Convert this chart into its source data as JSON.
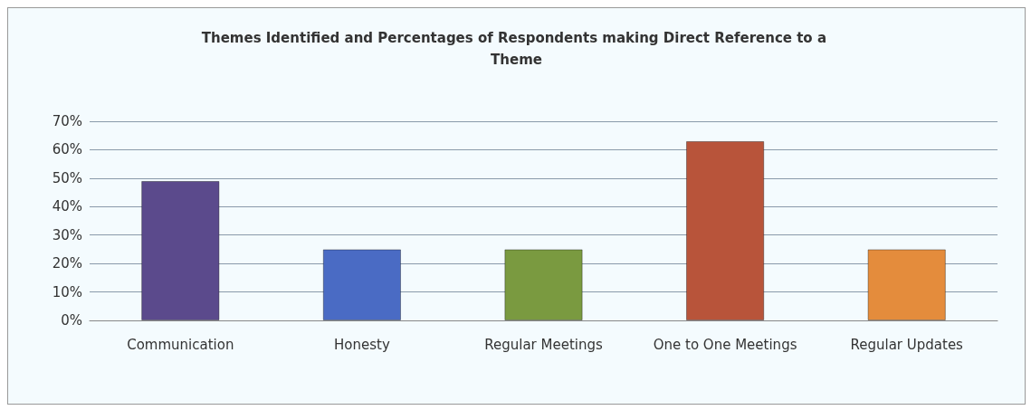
{
  "chart_data": {
    "type": "bar",
    "title": "Themes Identified and Percentages of Respondents making Direct Reference to a Theme",
    "categories": [
      "Communication",
      "Honesty",
      "Regular Meetings",
      "One to One Meetings",
      "Regular Updates"
    ],
    "values": [
      49,
      25,
      25,
      63,
      25
    ],
    "colors": [
      "#5b4a8c",
      "#4a6bc4",
      "#7a9a40",
      "#b8543a",
      "#e48c3c"
    ],
    "ylim": [
      0,
      70
    ],
    "yticks": [
      {
        "value": 0,
        "label": "0%"
      },
      {
        "value": 10,
        "label": "10%"
      },
      {
        "value": 20,
        "label": "20%"
      },
      {
        "value": 30,
        "label": "30%"
      },
      {
        "value": 40,
        "label": "40%"
      },
      {
        "value": 50,
        "label": "50%"
      },
      {
        "value": 60,
        "label": "60%"
      },
      {
        "value": 70,
        "label": "70%"
      }
    ],
    "grid": "y"
  }
}
